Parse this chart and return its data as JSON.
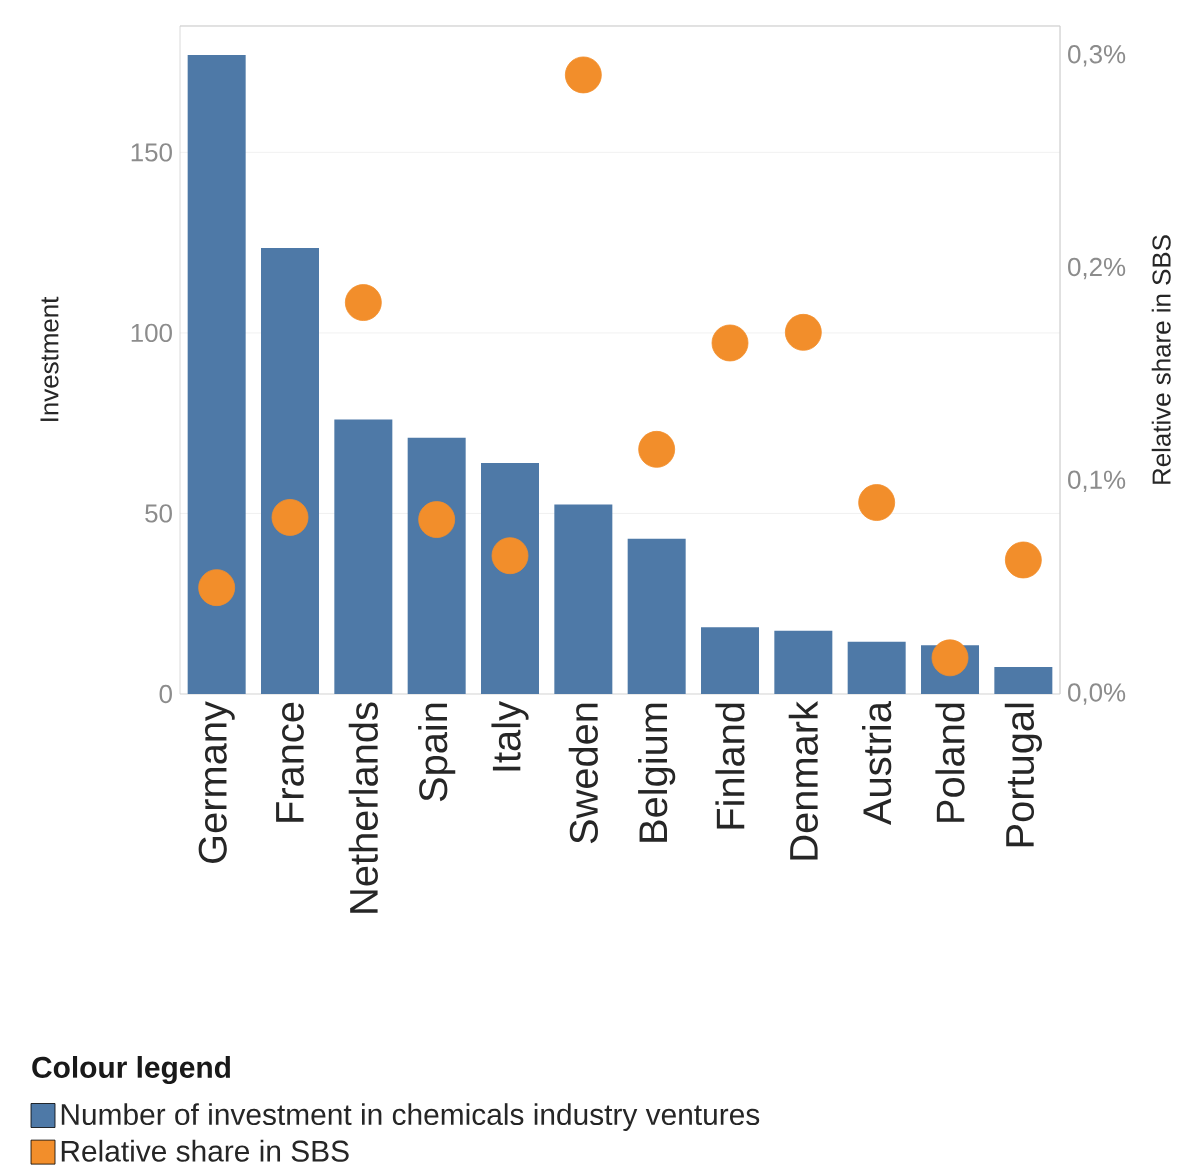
{
  "chart_data": {
    "type": "bar",
    "categories": [
      "Germany",
      "France",
      "Netherlands",
      "Spain",
      "Italy",
      "Sweden",
      "Belgium",
      "Finland",
      "Denmark",
      "Austria",
      "Poland",
      "Portugal"
    ],
    "ylabel": "Investment",
    "y2label": "Relative share in SBS",
    "legend_title": "Colour legend",
    "legend": "bottom",
    "grid": "y",
    "marker": "circle",
    "ylim": [
      0,
      185
    ],
    "yticks": [
      0,
      50,
      100,
      150
    ],
    "y2lim": [
      0,
      0.314
    ],
    "y2ticks": [
      {
        "value": 0,
        "label": "0,0%"
      },
      {
        "value": 0.1,
        "label": "0,1%"
      },
      {
        "value": 0.2,
        "label": "0,2%"
      },
      {
        "value": 0.3,
        "label": "0,3%"
      }
    ],
    "series": [
      {
        "name": "Number of investment in chemicals industry ventures",
        "color": "#4e79a7",
        "values": [
          177,
          123.5,
          76,
          71,
          64,
          52.5,
          43,
          18.5,
          17.5,
          14.5,
          13.5,
          7.5
        ]
      },
      {
        "name": "Relative share in SBS",
        "type": "scatter",
        "axis": "y2",
        "color": "#f28e2b",
        "values": [
          0.05,
          0.083,
          0.184,
          0.082,
          0.065,
          0.291,
          0.115,
          0.165,
          0.17,
          0.09,
          0.017,
          0.063
        ]
      }
    ]
  }
}
